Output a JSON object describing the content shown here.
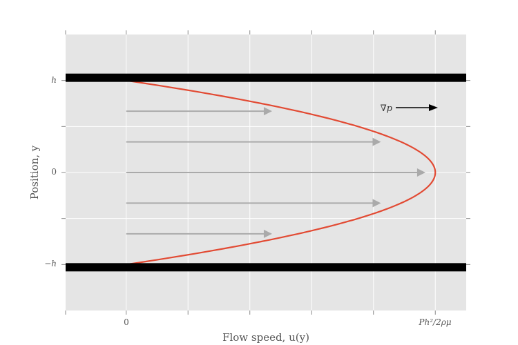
{
  "chart_data": {
    "type": "line",
    "title": "",
    "xlabel": "Flow speed, u(y)",
    "ylabel": "Position, y",
    "x_tick_labels": [
      {
        "value": 0,
        "label": "0"
      },
      {
        "value": 1,
        "label": "Ph²/2ρμ"
      }
    ],
    "y_tick_labels": [
      {
        "value": 1,
        "label": "h"
      },
      {
        "value": 0,
        "label": "0"
      },
      {
        "value": -1,
        "label": "−h"
      }
    ],
    "xlim": [
      -0.196,
      1.1
    ],
    "ylim": [
      -1.5,
      1.5
    ],
    "grid": true,
    "profile": {
      "name": "",
      "color": "#e24a33",
      "equation": "u(y) = 1 - y^2",
      "y_range": [
        -1,
        1
      ]
    },
    "walls": {
      "y": [
        1,
        -1
      ],
      "color": "#000000"
    },
    "velocity_arrows": {
      "color": "#aaaaaa",
      "items": [
        {
          "y": 0.667,
          "u": 0.472
        },
        {
          "y": 0.333,
          "u": 0.824
        },
        {
          "y": 0.0,
          "u": 0.968
        },
        {
          "y": -0.333,
          "u": 0.824
        },
        {
          "y": -0.667,
          "u": 0.472
        }
      ]
    },
    "pressure_gradient": {
      "label": "∇p",
      "direction": "right",
      "color": "#000000"
    }
  }
}
